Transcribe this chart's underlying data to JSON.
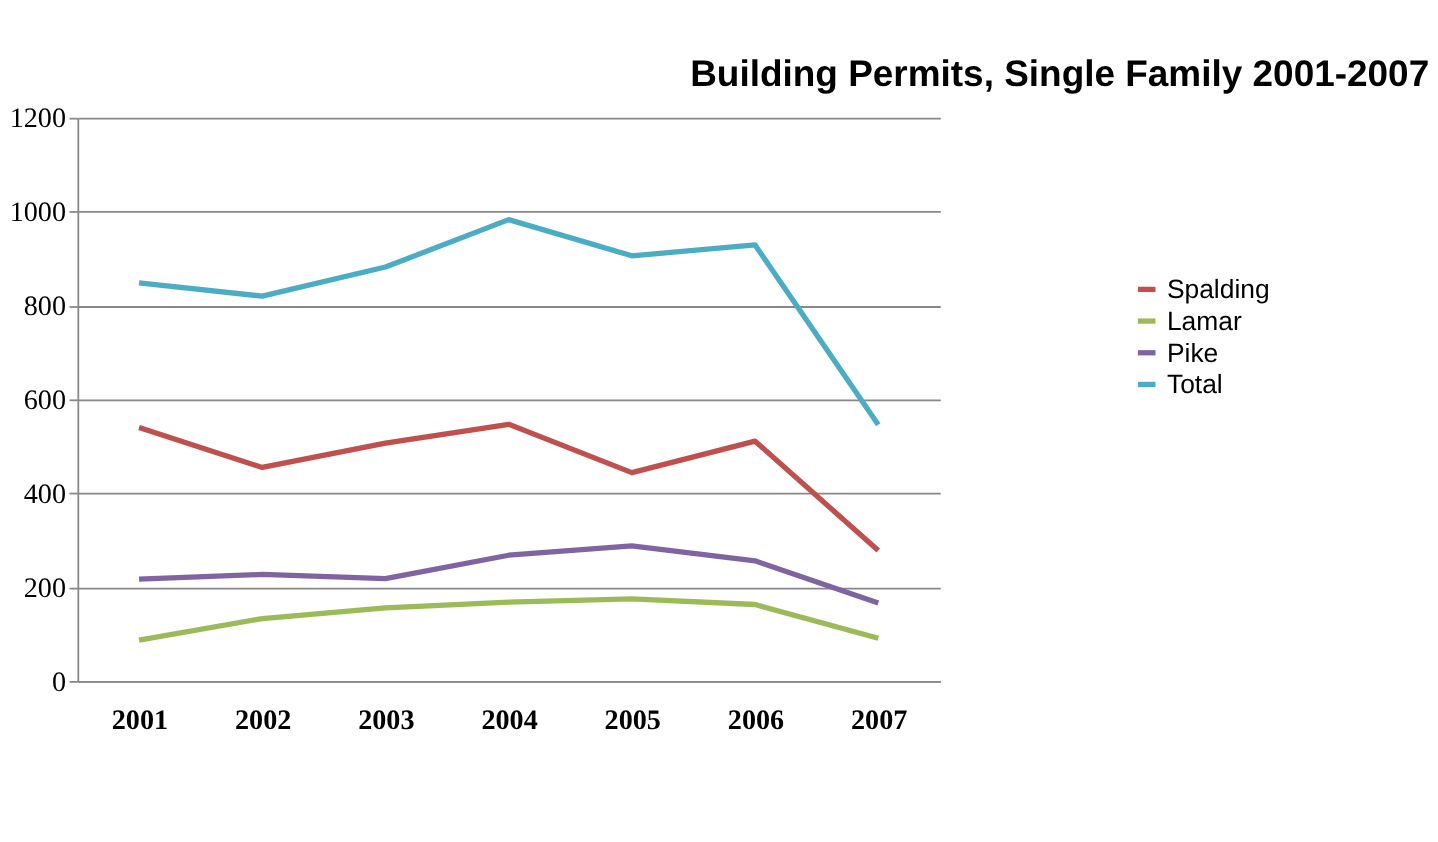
{
  "chart_data": {
    "type": "line",
    "title": "Building Permits, Single Family 2001-2007",
    "categories": [
      "2001",
      "2002",
      "2003",
      "2004",
      "2005",
      "2006",
      "2007"
    ],
    "series": [
      {
        "name": "Spalding",
        "color": "#c0504d",
        "values": [
          540,
          455,
          507,
          547,
          444,
          511,
          278
        ]
      },
      {
        "name": "Lamar",
        "color": "#9bbb59",
        "values": [
          87,
          133,
          156,
          168,
          175,
          163,
          91
        ]
      },
      {
        "name": "Pike",
        "color": "#8064a2",
        "values": [
          217,
          227,
          218,
          268,
          288,
          256,
          166
        ]
      },
      {
        "name": "Total",
        "color": "#4bacc6",
        "values": [
          848,
          820,
          882,
          983,
          906,
          929,
          546
        ]
      }
    ],
    "ylim": [
      0,
      1200
    ],
    "yticks": [
      0,
      200,
      400,
      600,
      800,
      1000,
      1200
    ],
    "grid": "y",
    "legend": "right",
    "marker": "none",
    "line_style": "solid"
  }
}
